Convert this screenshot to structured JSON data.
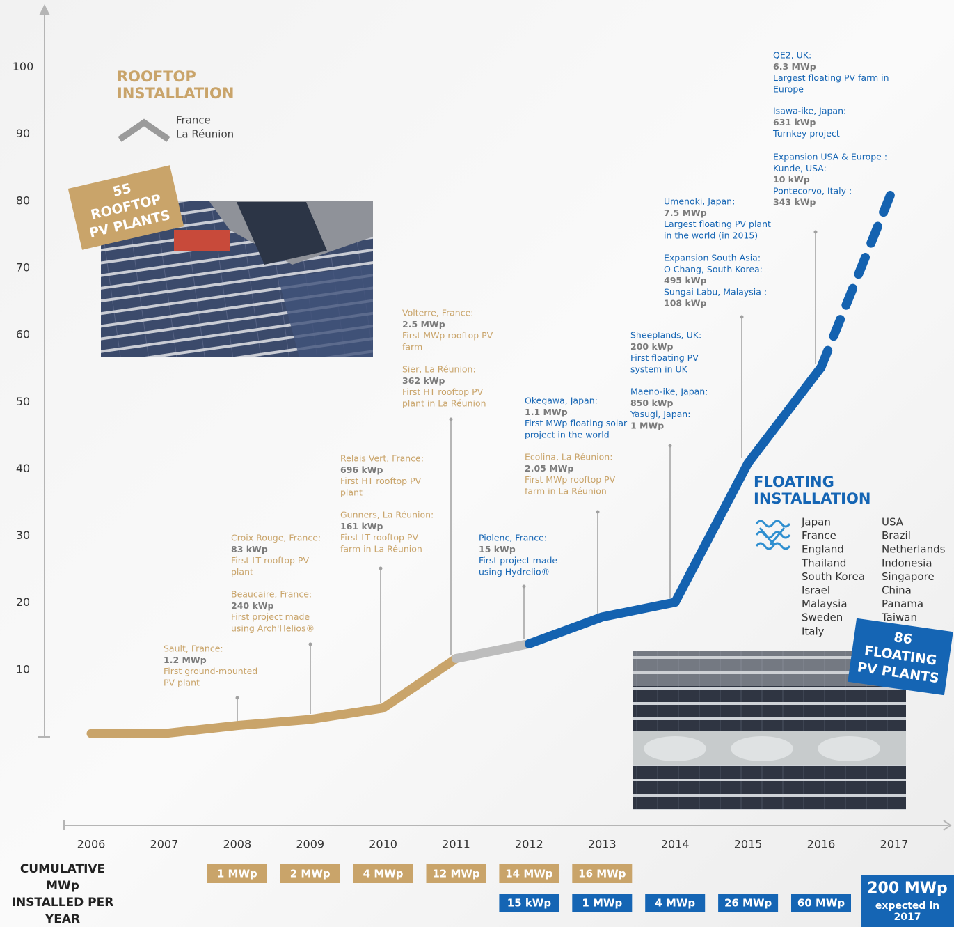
{
  "chart_data": {
    "type": "line",
    "categories": [
      "2006",
      "2007",
      "2008",
      "2009",
      "2010",
      "2011",
      "2012",
      "2013",
      "2014",
      "2015",
      "2016",
      "2017"
    ],
    "series": [
      {
        "color": "#c9a46a",
        "values": [
          0.5,
          0.5,
          1.7,
          2.6,
          4.3,
          11.7,
          null,
          null,
          null,
          null,
          null,
          null
        ]
      },
      {
        "color": "#bdbdbd",
        "values": [
          null,
          null,
          null,
          null,
          null,
          11.7,
          13.9,
          null,
          null,
          null,
          null,
          null
        ]
      },
      {
        "color": "#1462b0",
        "values": [
          null,
          null,
          null,
          null,
          null,
          null,
          13.9,
          17.9,
          20.1,
          40.9,
          55.2,
          null
        ]
      },
      {
        "color": "#1462b0",
        "dashed": true,
        "values": [
          null,
          null,
          null,
          null,
          null,
          null,
          null,
          null,
          null,
          null,
          55.2,
          82.3
        ]
      }
    ],
    "ylim": [
      0,
      109
    ],
    "yticks": [
      10,
      20,
      30,
      40,
      50,
      60,
      70,
      80,
      90,
      100
    ],
    "rooftop": {
      "title": [
        "ROOFTOP",
        "INSTALLATION"
      ],
      "color": "#c9a46a",
      "locations": [
        "France",
        "La Réunion"
      ],
      "badge": [
        "55",
        "ROOFTOP",
        "PV PLANTS"
      ]
    },
    "floating": {
      "title": [
        "FLOATING",
        "INSTALLATION"
      ],
      "color": "#1565b4",
      "countries": [
        [
          "Japan",
          "France",
          "England",
          "Thailand",
          "South Korea",
          "Israel",
          "Malaysia",
          "Sweden",
          "Italy"
        ],
        [
          "USA",
          "Brazil",
          "Netherlands",
          "Indonesia",
          "Singapore",
          "China",
          "Panama",
          "Taiwan"
        ]
      ],
      "badge": [
        "86",
        "FLOATING",
        "PV PLANTS"
      ]
    },
    "annotations": [
      [
        {
          "color": "#c9a46a",
          "lines": [
            "Sault, France:",
            "1.2 MWp",
            "First ground-mounted",
            "PV plant"
          ]
        }
      ],
      [
        {
          "color": "#c9a46a",
          "lines": [
            "Croix Rouge, France:",
            "83 kWp",
            "First LT rooftop PV",
            "plant"
          ]
        },
        {
          "color": "#c9a46a",
          "lines": [
            "Beaucaire, France:",
            "240 kWp",
            "First project made",
            "using Arch'Helios®"
          ]
        }
      ],
      [
        {
          "color": "#c9a46a",
          "lines": [
            "Relais Vert, France:",
            "696 kWp",
            "First HT rooftop PV",
            "plant"
          ]
        },
        {
          "color": "#c9a46a",
          "lines": [
            "Gunners, La Réunion:",
            "161 kWp",
            "First LT rooftop PV",
            "farm in La Réunion"
          ]
        }
      ],
      [
        {
          "color": "#c9a46a",
          "lines": [
            "Volterre, France:",
            "2.5 MWp",
            "First MWp rooftop PV",
            "farm"
          ]
        },
        {
          "color": "#c9a46a",
          "lines": [
            "Sier, La Réunion:",
            "362 kWp",
            "First HT rooftop PV",
            "plant in La Réunion"
          ]
        }
      ],
      [
        {
          "color": "#1565b4",
          "lines": [
            "Piolenc, France:",
            "15 kWp",
            "First project made",
            "using Hydrelio®"
          ]
        }
      ],
      [
        {
          "color": "#1565b4",
          "lines": [
            "Okegawa, Japan:",
            "1.1 MWp",
            "First MWp floating solar",
            "project in the world"
          ]
        },
        {
          "color": "#c9a46a",
          "lines": [
            "Ecolina, La Réunion:",
            "2.05 MWp",
            "First MWp rooftop PV",
            "farm in La Réunion"
          ]
        }
      ],
      [
        {
          "color": "#1565b4",
          "lines": [
            "Sheeplands, UK:",
            "200 kWp",
            "First floating PV",
            "system in UK"
          ]
        },
        {
          "color": "#1565b4",
          "lines": [
            "Maeno-ike, Japan:",
            "850 kWp",
            "Yasugi, Japan:",
            "1 MWp"
          ]
        }
      ],
      [
        {
          "color": "#1565b4",
          "lines": [
            "Umenoki, Japan:",
            "7.5 MWp",
            "Largest floating PV plant",
            "in the world (in 2015)"
          ]
        },
        {
          "color": "#1565b4",
          "lines": [
            "Expansion South Asia:",
            "O Chang, South Korea:",
            "495 kWp",
            "Sungai Labu, Malaysia :",
            "108 kWp"
          ]
        }
      ],
      [
        {
          "color": "#1565b4",
          "lines": [
            "QE2, UK:",
            "6.3 MWp",
            "Largest floating PV farm in",
            "Europe"
          ]
        },
        {
          "color": "#1565b4",
          "lines": [
            "Isawa-ike, Japan:",
            "631 kWp",
            "Turnkey project"
          ]
        },
        {
          "color": "#1565b4",
          "lines": [
            "Expansion USA & Europe :",
            "Kunde, USA:",
            "10 kWp",
            "Pontecorvo, Italy :",
            "343 kWp"
          ]
        }
      ]
    ],
    "table": {
      "label": [
        "CUMULATIVE",
        "MWp",
        "INSTALLED PER",
        "YEAR"
      ],
      "rooftop_row": [
        null,
        null,
        "1 MWp",
        "2 MWp",
        "4 MWp",
        "12 MWp",
        "14 MWp",
        "16 MWp",
        null,
        null,
        null,
        null
      ],
      "floating_row": [
        null,
        null,
        null,
        null,
        null,
        null,
        "15 kWp",
        "1 MWp",
        "4 MWp",
        "26 MWp",
        "60 MWp",
        "200 MWp"
      ],
      "expected": [
        "expected in",
        "2017"
      ]
    }
  }
}
